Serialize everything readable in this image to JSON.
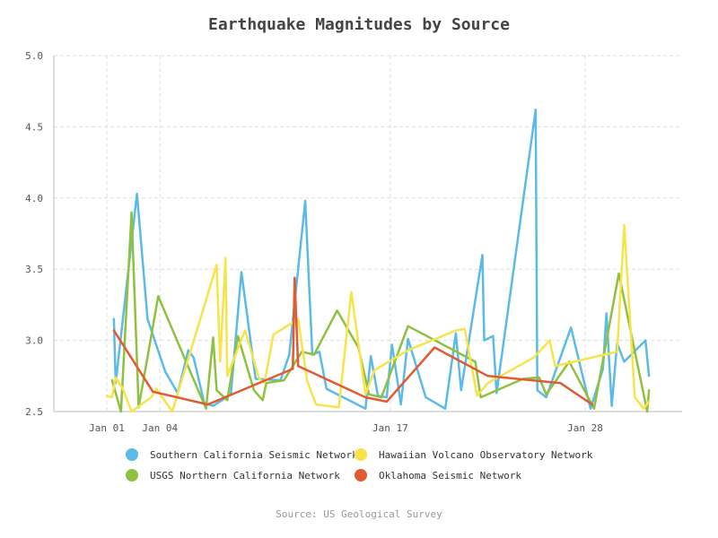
{
  "chart_data": {
    "type": "line",
    "title": "Earthquake Magnitudes by Source",
    "source": "Source: US Geological Survey",
    "ylim": [
      2.5,
      5.0
    ],
    "yticks": [
      "2.5",
      "3.0",
      "3.5",
      "4.0",
      "4.5",
      "5.0"
    ],
    "xlim": [
      0,
      31
    ],
    "xticks": [
      {
        "label": "Jan 01",
        "x": 0
      },
      {
        "label": "Jan 04",
        "x": 3
      },
      {
        "label": "Jan 17",
        "x": 16
      },
      {
        "label": "Jan 28",
        "x": 27
      }
    ],
    "series": [
      {
        "name": "Southern California Seismic Network",
        "color": "#5bbbe6",
        "points": [
          [
            0.4,
            3.15
          ],
          [
            0.5,
            2.7
          ],
          [
            1.7,
            4.03
          ],
          [
            2.3,
            3.15
          ],
          [
            3.3,
            2.78
          ],
          [
            4.0,
            2.63
          ],
          [
            4.6,
            2.93
          ],
          [
            4.9,
            2.88
          ],
          [
            5.5,
            2.56
          ],
          [
            6.0,
            2.54
          ],
          [
            6.5,
            2.58
          ],
          [
            7.0,
            2.62
          ],
          [
            7.6,
            3.48
          ],
          [
            8.4,
            2.73
          ],
          [
            9.8,
            2.72
          ],
          [
            10.3,
            2.9
          ],
          [
            11.2,
            3.98
          ],
          [
            11.6,
            2.9
          ],
          [
            12.0,
            2.92
          ],
          [
            12.4,
            2.66
          ],
          [
            14.6,
            2.52
          ],
          [
            14.9,
            2.89
          ],
          [
            15.3,
            2.61
          ],
          [
            15.8,
            2.6
          ],
          [
            16.1,
            2.97
          ],
          [
            16.6,
            2.55
          ],
          [
            17.0,
            3.01
          ],
          [
            18.0,
            2.6
          ],
          [
            19.1,
            2.52
          ],
          [
            19.7,
            3.05
          ],
          [
            20.0,
            2.65
          ],
          [
            21.2,
            3.6
          ],
          [
            21.3,
            3.0
          ],
          [
            21.8,
            3.03
          ],
          [
            22.0,
            2.63
          ],
          [
            24.2,
            4.62
          ],
          [
            24.3,
            2.65
          ],
          [
            24.8,
            2.6
          ],
          [
            26.2,
            3.09
          ],
          [
            27.3,
            2.52
          ],
          [
            28.0,
            2.8
          ],
          [
            28.2,
            3.19
          ],
          [
            28.5,
            2.54
          ],
          [
            28.8,
            2.98
          ],
          [
            29.2,
            2.85
          ],
          [
            30.4,
            3.0
          ],
          [
            30.6,
            2.75
          ]
        ]
      },
      {
        "name": "USGS Northern California Network",
        "color": "#8fc140",
        "points": [
          [
            0.3,
            2.72
          ],
          [
            0.8,
            2.5
          ],
          [
            1.4,
            3.9
          ],
          [
            1.8,
            2.53
          ],
          [
            2.9,
            3.31
          ],
          [
            5.6,
            2.52
          ],
          [
            6.0,
            3.02
          ],
          [
            6.2,
            2.65
          ],
          [
            6.8,
            2.58
          ],
          [
            7.4,
            3.03
          ],
          [
            8.3,
            2.65
          ],
          [
            8.8,
            2.58
          ],
          [
            9.0,
            2.7
          ],
          [
            10.0,
            2.72
          ],
          [
            11.0,
            2.92
          ],
          [
            11.7,
            2.9
          ],
          [
            13.0,
            3.21
          ],
          [
            14.2,
            2.95
          ],
          [
            14.8,
            2.62
          ],
          [
            15.5,
            2.6
          ],
          [
            17.0,
            3.1
          ],
          [
            20.8,
            2.85
          ],
          [
            21.1,
            2.6
          ],
          [
            23.5,
            2.73
          ],
          [
            24.4,
            2.74
          ],
          [
            24.8,
            2.62
          ],
          [
            26.1,
            2.85
          ],
          [
            27.5,
            2.52
          ],
          [
            28.9,
            3.47
          ],
          [
            30.5,
            2.5
          ],
          [
            30.6,
            2.65
          ]
        ]
      },
      {
        "name": "Hawaiian Volcano Observatory Network",
        "color": "#f7e34a",
        "points": [
          [
            0.0,
            2.61
          ],
          [
            0.3,
            2.6
          ],
          [
            0.5,
            2.74
          ],
          [
            0.9,
            2.66
          ],
          [
            1.4,
            2.5
          ],
          [
            2.5,
            2.6
          ],
          [
            2.8,
            2.66
          ],
          [
            3.7,
            2.5
          ],
          [
            6.2,
            3.53
          ],
          [
            6.4,
            2.85
          ],
          [
            6.7,
            3.58
          ],
          [
            6.8,
            2.75
          ],
          [
            7.8,
            3.07
          ],
          [
            8.6,
            2.73
          ],
          [
            8.9,
            2.7
          ],
          [
            9.4,
            3.04
          ],
          [
            10.8,
            3.15
          ],
          [
            11.3,
            2.72
          ],
          [
            11.8,
            2.55
          ],
          [
            13.1,
            2.53
          ],
          [
            13.8,
            3.34
          ],
          [
            14.6,
            2.62
          ],
          [
            15.1,
            2.79
          ],
          [
            17.0,
            2.93
          ],
          [
            19.7,
            3.07
          ],
          [
            20.2,
            3.08
          ],
          [
            20.9,
            2.61
          ],
          [
            21.5,
            2.7
          ],
          [
            24.1,
            2.88
          ],
          [
            25.0,
            3.0
          ],
          [
            25.3,
            2.82
          ],
          [
            28.1,
            2.9
          ],
          [
            28.8,
            2.92
          ],
          [
            29.2,
            3.81
          ],
          [
            29.8,
            2.6
          ],
          [
            30.3,
            2.52
          ],
          [
            30.6,
            2.57
          ]
        ]
      },
      {
        "name": "Oklahoma Seismic Network",
        "color": "#e05a32",
        "points": [
          [
            0.4,
            3.07
          ],
          [
            2.6,
            2.64
          ],
          [
            5.7,
            2.55
          ],
          [
            10.5,
            2.8
          ],
          [
            10.6,
            3.44
          ],
          [
            10.8,
            2.82
          ],
          [
            14.6,
            2.6
          ],
          [
            15.8,
            2.57
          ],
          [
            18.5,
            2.95
          ],
          [
            21.5,
            2.75
          ],
          [
            25.6,
            2.7
          ],
          [
            27.4,
            2.55
          ]
        ]
      }
    ],
    "legend_order": [
      0,
      2,
      1,
      3
    ]
  }
}
